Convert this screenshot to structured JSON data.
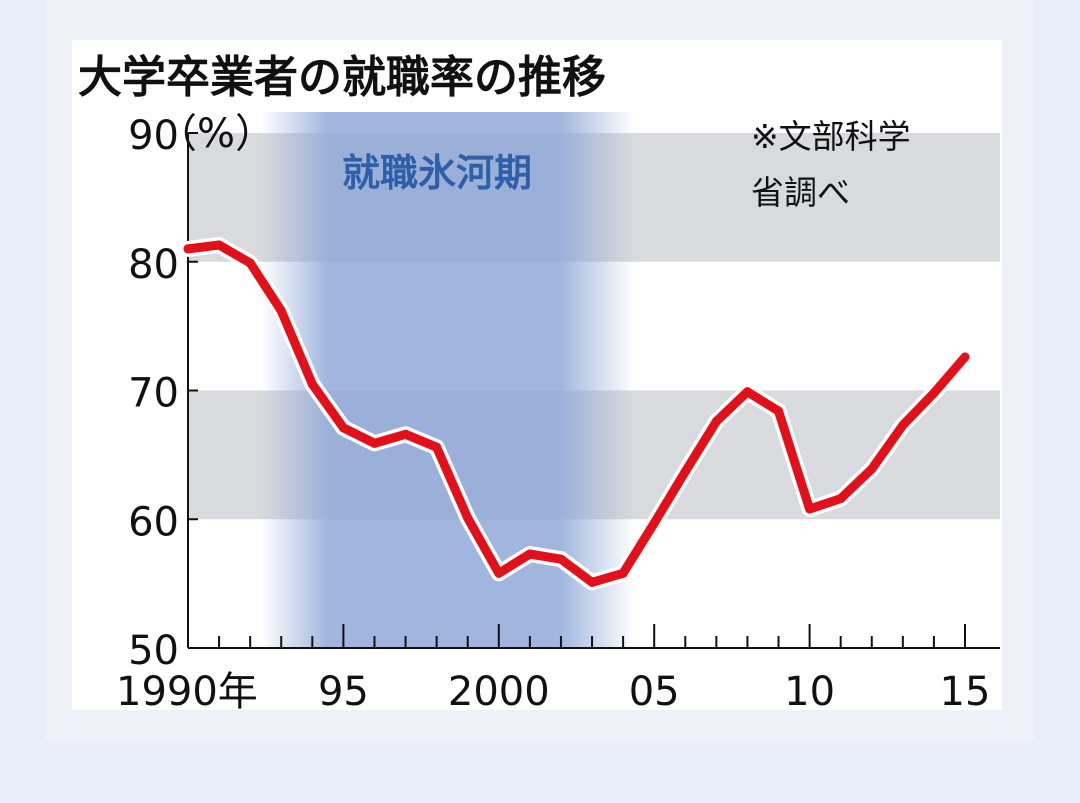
{
  "chart_data": {
    "type": "line",
    "title": "大学卒業者の就職率の推移",
    "ylabel": "（%）",
    "source_note_line1": "※文部科学",
    "source_note_line2": "省調べ",
    "highlight_label": "就職氷河期",
    "highlight_range": [
      1993.8,
      2004.1
    ],
    "ylim": [
      50,
      90
    ],
    "xlim": [
      1990,
      2015
    ],
    "yticks": [
      50,
      60,
      70,
      80,
      90
    ],
    "ytick_labels": [
      "50",
      "60",
      "70",
      "80",
      "90"
    ],
    "xticks": [
      1990,
      1991,
      1992,
      1993,
      1994,
      1995,
      1996,
      1997,
      1998,
      1999,
      2000,
      2001,
      2002,
      2003,
      2004,
      2005,
      2006,
      2007,
      2008,
      2009,
      2010,
      2011,
      2012,
      2013,
      2014,
      2015
    ],
    "xtick_labels": [
      {
        "x": 1990,
        "label": "1990年"
      },
      {
        "x": 1995,
        "label": "95"
      },
      {
        "x": 2000,
        "label": "2000"
      },
      {
        "x": 2005,
        "label": "05"
      },
      {
        "x": 2010,
        "label": "10"
      },
      {
        "x": 2015,
        "label": "15"
      }
    ],
    "gray_bands": [
      [
        60,
        70
      ],
      [
        80,
        90
      ]
    ],
    "series": [
      {
        "color": "#e3101a",
        "x": [
          1990,
          1991,
          1992,
          1993,
          1994,
          1995,
          1996,
          1997,
          1998,
          1999,
          2000,
          2001,
          2002,
          2003,
          2004,
          2005,
          2006,
          2007,
          2008,
          2009,
          2010,
          2011,
          2012,
          2013,
          2014,
          2015
        ],
        "values": [
          81.0,
          81.3,
          79.9,
          76.2,
          70.5,
          67.1,
          65.9,
          66.6,
          65.6,
          60.1,
          55.8,
          57.3,
          56.9,
          55.1,
          55.8,
          59.7,
          63.7,
          67.6,
          69.9,
          68.4,
          60.8,
          61.6,
          63.9,
          67.3,
          69.8,
          72.6
        ]
      }
    ]
  }
}
